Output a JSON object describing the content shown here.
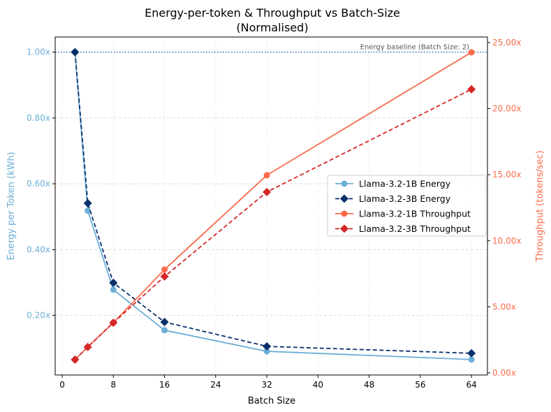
{
  "chart_data": {
    "type": "line",
    "title": "Energy-per-token & Throughput vs Batch-Size",
    "subtitle": "(Normalised)",
    "xlabel": "Batch Size",
    "ylabel_left": "Energy per Token (kWh)",
    "ylabel_right": "Throughput (tokens/sec)",
    "xlim": [
      -1.1,
      66.5
    ],
    "ylim_left": [
      0.019,
      1.046
    ],
    "ylim_right": [
      -0.16,
      25.42
    ],
    "x_ticks": [
      0,
      8,
      16,
      24,
      32,
      40,
      48,
      56,
      64
    ],
    "x_tick_labels": [
      "0",
      "8",
      "16",
      "24",
      "32",
      "40",
      "48",
      "56",
      "64"
    ],
    "y_left_ticks": [
      0.2,
      0.4,
      0.6,
      0.8,
      1.0
    ],
    "y_left_tick_labels": [
      "0.20x",
      "0.40x",
      "0.60x",
      "0.80x",
      "1.00x"
    ],
    "y_right_ticks": [
      0,
      5,
      10,
      15,
      20,
      25
    ],
    "y_right_tick_labels": [
      "0.00x",
      "5.00x",
      "10.00x",
      "15.00x",
      "20.00x",
      "25.00x"
    ],
    "grid": true,
    "legend_position": "center-right",
    "baseline": {
      "value": 1.0,
      "label": "Energy baseline (Batch Size: 2)",
      "color": "#4a78a8"
    },
    "left_axis_color": "#6baed6",
    "right_axis_color": "#fb6a4a",
    "x": [
      2,
      4,
      8,
      16,
      32,
      64
    ],
    "series": [
      {
        "name": "Llama-3.2-1B Energy",
        "axis": "left",
        "color": "#6baed6",
        "marker": "circle",
        "dash": false,
        "values": [
          1.0,
          0.518,
          0.278,
          0.155,
          0.091,
          0.066
        ]
      },
      {
        "name": "Llama-3.2-3B Energy",
        "axis": "left",
        "color": "#08306b",
        "marker": "diamond",
        "dash": true,
        "values": [
          1.0,
          0.541,
          0.299,
          0.18,
          0.106,
          0.085
        ]
      },
      {
        "name": "Llama-3.2-1B Throughput",
        "axis": "right",
        "color": "#fb6a4a",
        "marker": "circle",
        "dash": false,
        "values": [
          1.0,
          1.96,
          3.8,
          7.82,
          14.96,
          24.26
        ]
      },
      {
        "name": "Llama-3.2-3B Throughput",
        "axis": "right",
        "color": "#d62728",
        "marker": "diamond",
        "dash": true,
        "values": [
          1.0,
          1.96,
          3.8,
          7.29,
          13.69,
          21.46
        ]
      }
    ]
  }
}
